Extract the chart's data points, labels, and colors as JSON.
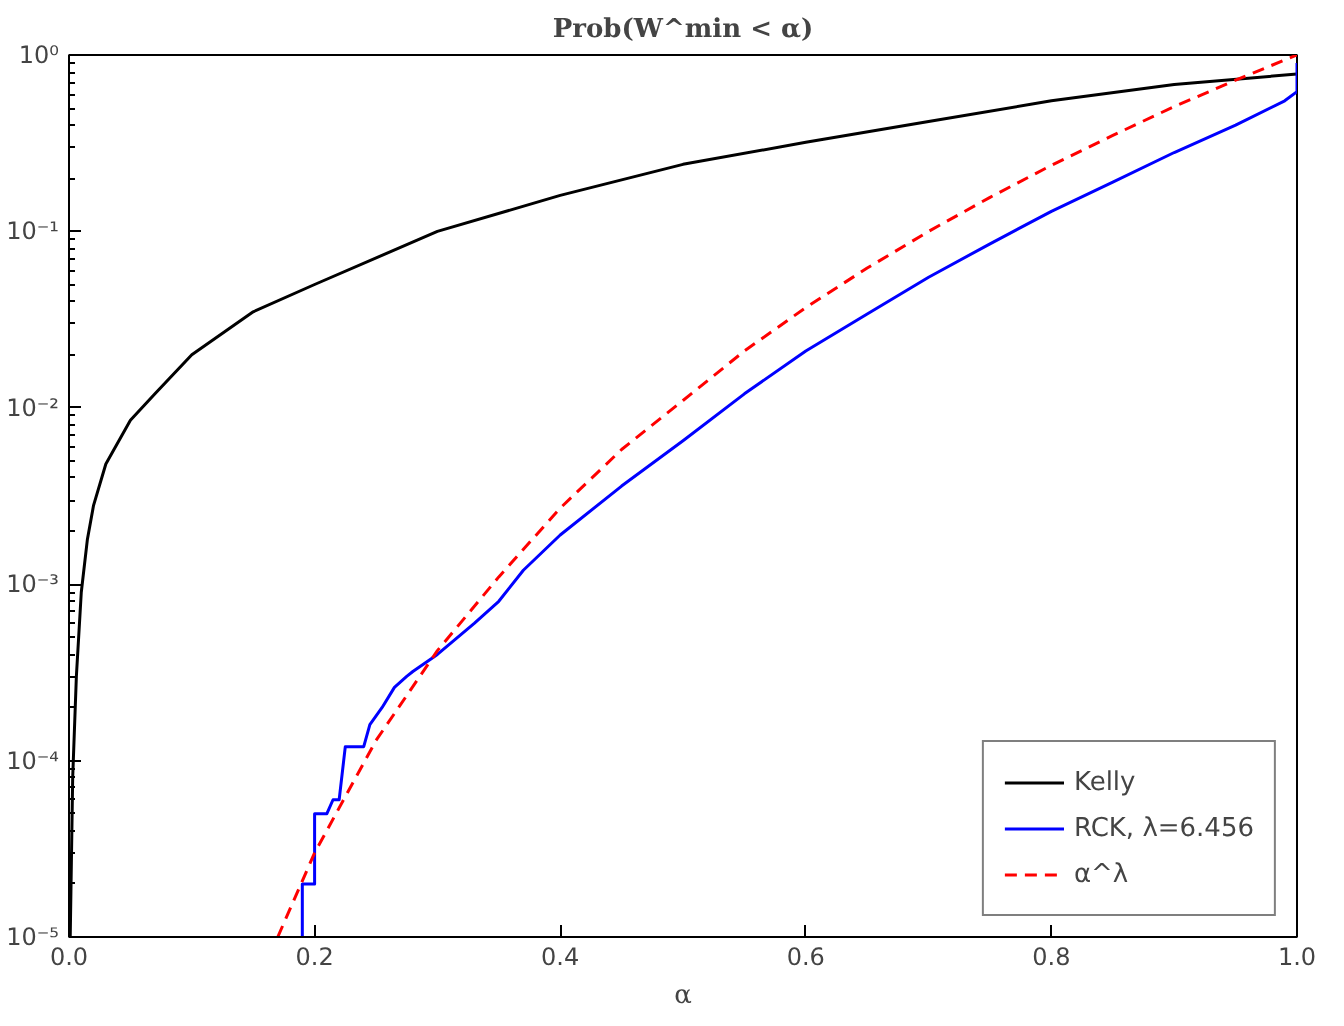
{
  "chart_data": {
    "type": "line",
    "title": "Prob(W^min < α)",
    "xlabel": "α",
    "log": "y",
    "grid": false,
    "legend": "bottom right",
    "xlim": [
      0,
      1
    ],
    "xticks": [
      {
        "value": 0,
        "label": "0.0"
      },
      0.2,
      0.4,
      0.6,
      0.8,
      {
        "value": 1,
        "label": "1.0"
      }
    ],
    "ylim": [
      1e-05,
      1
    ],
    "yticks": [
      {
        "value": 1e-05,
        "label": "10⁻⁵"
      },
      {
        "value": 0.0001,
        "label": "10⁻⁴"
      },
      {
        "value": 0.001,
        "label": "10⁻³"
      },
      {
        "value": 0.01,
        "label": "10⁻²"
      },
      {
        "value": 0.1,
        "label": "10⁻¹"
      },
      {
        "value": 1,
        "label": "10⁰"
      }
    ],
    "series": [
      {
        "name": "Kelly",
        "color": "#000000",
        "line_style": "solid",
        "x": [
          0.001,
          0.003,
          0.006,
          0.01,
          0.015,
          0.02,
          0.03,
          0.05,
          0.07,
          0.1,
          0.15,
          0.2,
          0.3,
          0.4,
          0.5,
          0.6,
          0.7,
          0.8,
          0.9,
          1.0
        ],
        "values": [
          1e-05,
          8e-05,
          0.0003,
          0.0009,
          0.0018,
          0.0028,
          0.0048,
          0.0085,
          0.012,
          0.02,
          0.035,
          0.05,
          0.1,
          0.16,
          0.24,
          0.32,
          0.42,
          0.55,
          0.68,
          0.78
        ]
      },
      {
        "name": "RCK, λ=6.456",
        "color": "#0000ff",
        "line_style": "solid",
        "x": [
          0.19,
          0.19,
          0.2,
          0.2,
          0.21,
          0.215,
          0.22,
          0.225,
          0.24,
          0.245,
          0.255,
          0.265,
          0.275,
          0.28,
          0.3,
          0.33,
          0.35,
          0.37,
          0.4,
          0.45,
          0.5,
          0.55,
          0.6,
          0.65,
          0.7,
          0.75,
          0.8,
          0.85,
          0.9,
          0.95,
          0.99,
          1.0,
          1.0
        ],
        "values": [
          1e-05,
          2e-05,
          2e-05,
          5e-05,
          5e-05,
          6e-05,
          6e-05,
          0.00012,
          0.00012,
          0.00016,
          0.0002,
          0.00026,
          0.0003,
          0.00032,
          0.0004,
          0.0006,
          0.0008,
          0.0012,
          0.0019,
          0.0036,
          0.0065,
          0.012,
          0.021,
          0.034,
          0.055,
          0.085,
          0.13,
          0.19,
          0.28,
          0.4,
          0.55,
          0.62,
          0.9
        ]
      },
      {
        "name": "α^λ",
        "color": "#ff0000",
        "line_style": "dashed",
        "x": [
          0.17,
          0.2,
          0.25,
          0.3,
          0.35,
          0.4,
          0.45,
          0.5,
          0.55,
          0.6,
          0.65,
          0.7,
          0.75,
          0.8,
          0.85,
          0.9,
          0.95,
          1.0
        ],
        "values": [
          1e-05,
          3e-05,
          0.00013,
          0.00042,
          0.0011,
          0.0027,
          0.0058,
          0.011,
          0.021,
          0.037,
          0.062,
          0.1,
          0.156,
          0.237,
          0.35,
          0.51,
          0.72,
          1.0
        ]
      }
    ]
  }
}
